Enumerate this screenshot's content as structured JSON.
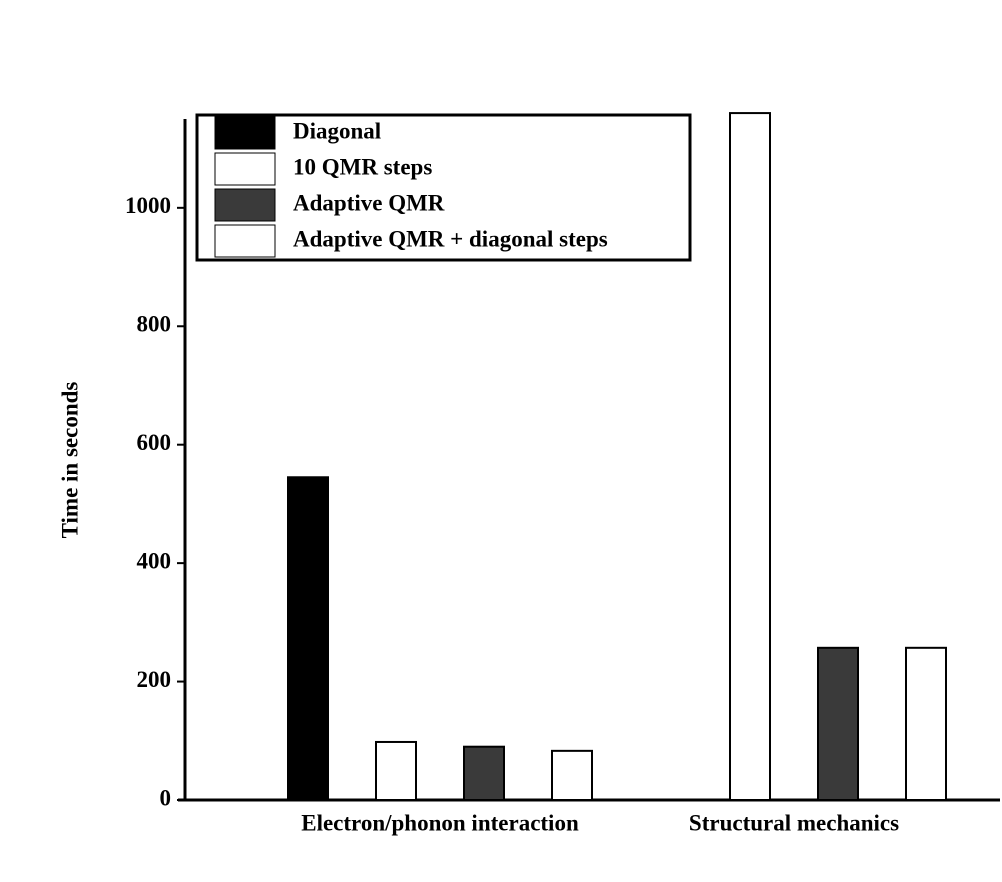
{
  "chart_data": {
    "type": "bar",
    "y_label": "Time in seconds",
    "categories": [
      "Electron/phonon interaction",
      "Structural mechanics"
    ],
    "series": [
      {
        "name": "Diagonal",
        "color": "#000000",
        "values": [
          545,
          null
        ]
      },
      {
        "name": "10 QMR steps",
        "color": "#ffffff",
        "values": [
          98,
          1160
        ]
      },
      {
        "name": "Adaptive QMR",
        "color": "#3a3a3a",
        "values": [
          90,
          257
        ]
      },
      {
        "name": "Adaptive QMR + diagonal steps",
        "color": "#ffffff",
        "values": [
          83,
          257
        ]
      }
    ],
    "ylim": [
      0,
      1150
    ],
    "yticks": [
      0,
      200,
      400,
      600,
      800,
      1000
    ],
    "legend": "upper left",
    "grid": false
  }
}
